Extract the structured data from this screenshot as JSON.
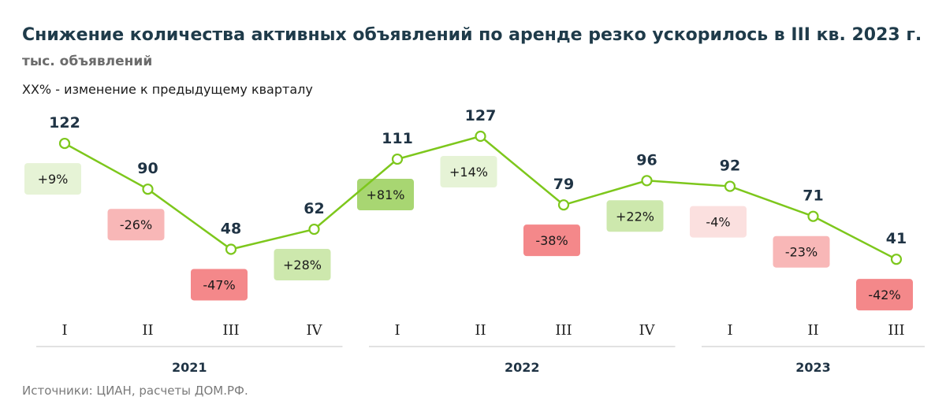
{
  "title": "Снижение количества активных объявлений по аренде резко ускорилось в III кв. 2023 г.",
  "subtitle": "тыс. объявлений",
  "note": "XX% - изменение к предыдущему кварталу",
  "source": "Источники: ЦИАН, расчеты ДОМ.РФ.",
  "colors": {
    "line": "#7dc71c",
    "label_text": "#1f3344",
    "pos_strong": "#a8d672",
    "pos_mid": "#cde8ad",
    "pos_light": "#e6f3d6",
    "neg_strong": "#f4888a",
    "neg_mid": "#f8b7b7",
    "neg_light": "#fbe0df"
  },
  "chart_data": {
    "type": "line",
    "title": "Снижение количества активных объявлений по аренде резко ускорилось в III кв. 2023 г.",
    "ylabel": "тыс. объявлений",
    "ylim": [
      40,
      127
    ],
    "categories": [
      "I",
      "II",
      "III",
      "IV",
      "I",
      "II",
      "III",
      "IV",
      "I",
      "II",
      "III"
    ],
    "years": [
      {
        "label": "2021",
        "span": [
          0,
          3
        ]
      },
      {
        "label": "2022",
        "span": [
          4,
          7
        ]
      },
      {
        "label": "2023",
        "span": [
          8,
          10
        ]
      }
    ],
    "values": [
      122,
      90,
      48,
      62,
      111,
      127,
      79,
      96,
      92,
      71,
      41
    ],
    "changes": [
      "+9%",
      "-26%",
      "-47%",
      "+28%",
      "+81%",
      "+14%",
      "-38%",
      "+22%",
      "-4%",
      "-23%",
      "-42%"
    ],
    "change_values": [
      9,
      -26,
      -47,
      28,
      81,
      14,
      -38,
      22,
      -4,
      -23,
      -42
    ]
  }
}
